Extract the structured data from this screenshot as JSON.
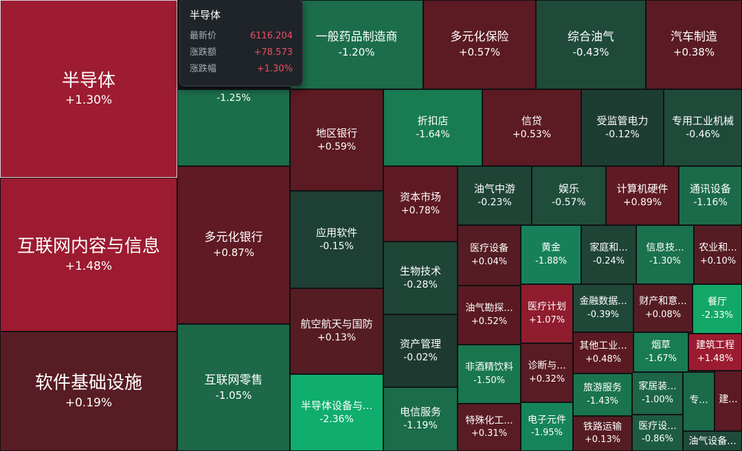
{
  "tooltip": {
    "title": "半导体",
    "rows": [
      {
        "label": "最新价",
        "value": "6116.204"
      },
      {
        "label": "涨跌额",
        "value": "+78.573"
      },
      {
        "label": "涨跌幅",
        "value": "+1.30%"
      }
    ]
  },
  "colors": {
    "up_strong": "#a11d33",
    "up_mid": "#8a1e2d",
    "up_weak": "#5c1a23",
    "down_weak": "#1e3f33",
    "down_mid": "#1d5a41",
    "down_strong": "#16855a",
    "down_max": "#0fad6e",
    "tooltip_up_text": "#ec4f62"
  },
  "tiles": [
    {
      "name": "半导体",
      "change": "+1.30%",
      "color": "#9e1c31",
      "selected": true
    },
    {
      "name": "互联网内容与信息",
      "change": "+1.48%",
      "color": "#9c1b30"
    },
    {
      "name": "软件基础设施",
      "change": "+0.19%",
      "color": "#581c24"
    },
    {
      "name": "",
      "change": "-1.25%",
      "color": "#1b6e4b"
    },
    {
      "name": "多元化银行",
      "change": "+0.87%",
      "color": "#5f1a24"
    },
    {
      "name": "互联网零售",
      "change": "-1.05%",
      "color": "#1c6848"
    },
    {
      "name": "一般药品制造商",
      "change": "-1.20%",
      "color": "#1b6d4b"
    },
    {
      "name": "多元化保险",
      "change": "+0.57%",
      "color": "#5c1a23"
    },
    {
      "name": "综合油气",
      "change": "-0.43%",
      "color": "#1f4a3a"
    },
    {
      "name": "汽车制造",
      "change": "+0.38%",
      "color": "#5a1b24"
    },
    {
      "name": "地区银行",
      "change": "+0.59%",
      "color": "#5c1a23"
    },
    {
      "name": "应用软件",
      "change": "-0.15%",
      "color": "#1e3f33"
    },
    {
      "name": "航空航天与国防",
      "change": "+0.13%",
      "color": "#561c24"
    },
    {
      "name": "半导体设备与...",
      "change": "-2.36%",
      "color": "#0fad6e"
    },
    {
      "name": "折扣店",
      "change": "-1.64%",
      "color": "#187b52"
    },
    {
      "name": "信贷",
      "change": "+0.53%",
      "color": "#5c1a23"
    },
    {
      "name": "受监管电力",
      "change": "-0.12%",
      "color": "#1e3d32"
    },
    {
      "name": "专用工业机械",
      "change": "-0.46%",
      "color": "#1f4a3a"
    },
    {
      "name": "资本市场",
      "change": "+0.78%",
      "color": "#5e1a23"
    },
    {
      "name": "生物技术",
      "change": "-0.28%",
      "color": "#1f4537"
    },
    {
      "name": "资产管理",
      "change": "-0.02%",
      "color": "#1e3a30"
    },
    {
      "name": "电信服务",
      "change": "-1.19%",
      "color": "#1b6c4a"
    },
    {
      "name": "油气中游",
      "change": "-0.23%",
      "color": "#1f4436"
    },
    {
      "name": "娱乐",
      "change": "-0.57%",
      "color": "#1f4d3b"
    },
    {
      "name": "计算机硬件",
      "change": "+0.89%",
      "color": "#5f1a24"
    },
    {
      "name": "通讯设备",
      "change": "-1.16%",
      "color": "#1b6b4a"
    },
    {
      "name": "医疗设备",
      "change": "+0.04%",
      "color": "#551c24"
    },
    {
      "name": "黄金",
      "change": "-1.88%",
      "color": "#17805a"
    },
    {
      "name": "家庭和...",
      "change": "-0.24%",
      "color": "#1f4436"
    },
    {
      "name": "信息技...",
      "change": "-1.30%",
      "color": "#1a714d"
    },
    {
      "name": "农业和...",
      "change": "+0.10%",
      "color": "#561c24"
    },
    {
      "name": "油气勘探...",
      "change": "+0.52%",
      "color": "#5b1a23"
    },
    {
      "name": "医疗计划",
      "change": "+1.07%",
      "color": "#8f1d2e"
    },
    {
      "name": "金融数据...",
      "change": "-0.39%",
      "color": "#1f4838"
    },
    {
      "name": "财产和意...",
      "change": "+0.08%",
      "color": "#561c24"
    },
    {
      "name": "餐厅",
      "change": "-2.33%",
      "color": "#13a868"
    },
    {
      "name": "非酒精饮料",
      "change": "-1.50%",
      "color": "#19764f"
    },
    {
      "name": "诊断与...",
      "change": "+0.32%",
      "color": "#591b24"
    },
    {
      "name": "其他工业...",
      "change": "+0.48%",
      "color": "#5b1a23"
    },
    {
      "name": "烟草",
      "change": "-1.67%",
      "color": "#187b52"
    },
    {
      "name": "建筑工程",
      "change": "+1.48%",
      "color": "#9c1b30"
    },
    {
      "name": "旅游服务",
      "change": "-1.43%",
      "color": "#1a744e"
    },
    {
      "name": "家居装...",
      "change": "-1.00%",
      "color": "#1c6547"
    },
    {
      "name": "专...",
      "change": "",
      "color": "#1b6a49"
    },
    {
      "name": "建...",
      "change": "",
      "color": "#5a1b24"
    },
    {
      "name": "特殊化工...",
      "change": "+0.31%",
      "color": "#591b24"
    },
    {
      "name": "电子元件",
      "change": "-1.95%",
      "color": "#16845a"
    },
    {
      "name": "铁路运输",
      "change": "+0.13%",
      "color": "#561c24"
    },
    {
      "name": "医疗设...",
      "change": "-0.86%",
      "color": "#1d5c42"
    },
    {
      "name": "油气设备...",
      "change": "",
      "color": "#1f4a3a"
    }
  ]
}
